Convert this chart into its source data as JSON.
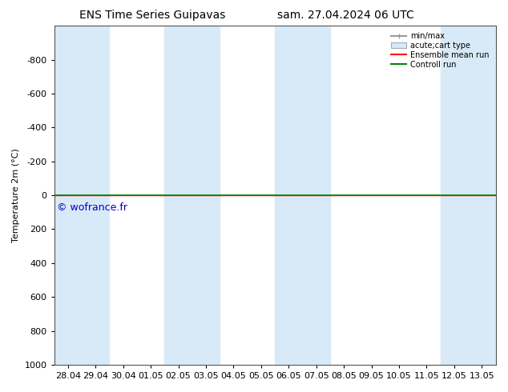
{
  "title_left": "ENS Time Series Guipavas",
  "title_right": "sam. 27.04.2024 06 UTC",
  "ylabel": "Temperature 2m (°C)",
  "watermark": "© wofrance.fr",
  "watermark_color": "#0000cc",
  "xlim_left": 0,
  "xlim_right": 16,
  "ylim_bottom": 1000,
  "ylim_top": -1000,
  "yticks": [
    -800,
    -600,
    -400,
    -200,
    0,
    200,
    400,
    600,
    800,
    1000
  ],
  "xtick_labels": [
    "28.04",
    "29.04",
    "30.04",
    "01.05",
    "02.05",
    "03.05",
    "04.05",
    "05.05",
    "06.05",
    "07.05",
    "08.05",
    "09.05",
    "10.05",
    "11.05",
    "12.05",
    "13.05"
  ],
  "xtick_positions": [
    0.5,
    1.5,
    2.5,
    3.5,
    4.5,
    5.5,
    6.5,
    7.5,
    8.5,
    9.5,
    10.5,
    11.5,
    12.5,
    13.5,
    14.5,
    15.5
  ],
  "background_color": "#ffffff",
  "plot_background_color": "#ffffff",
  "shaded_bands": [
    [
      0.0,
      2.0
    ],
    [
      4.0,
      6.0
    ],
    [
      8.0,
      10.0
    ],
    [
      14.0,
      16.0
    ]
  ],
  "shaded_color": "#d8eaf7",
  "horizontal_line_y": 0,
  "control_run_color": "#008800",
  "ensemble_mean_color": "#ff0000",
  "font_size": 8,
  "title_font_size": 10
}
